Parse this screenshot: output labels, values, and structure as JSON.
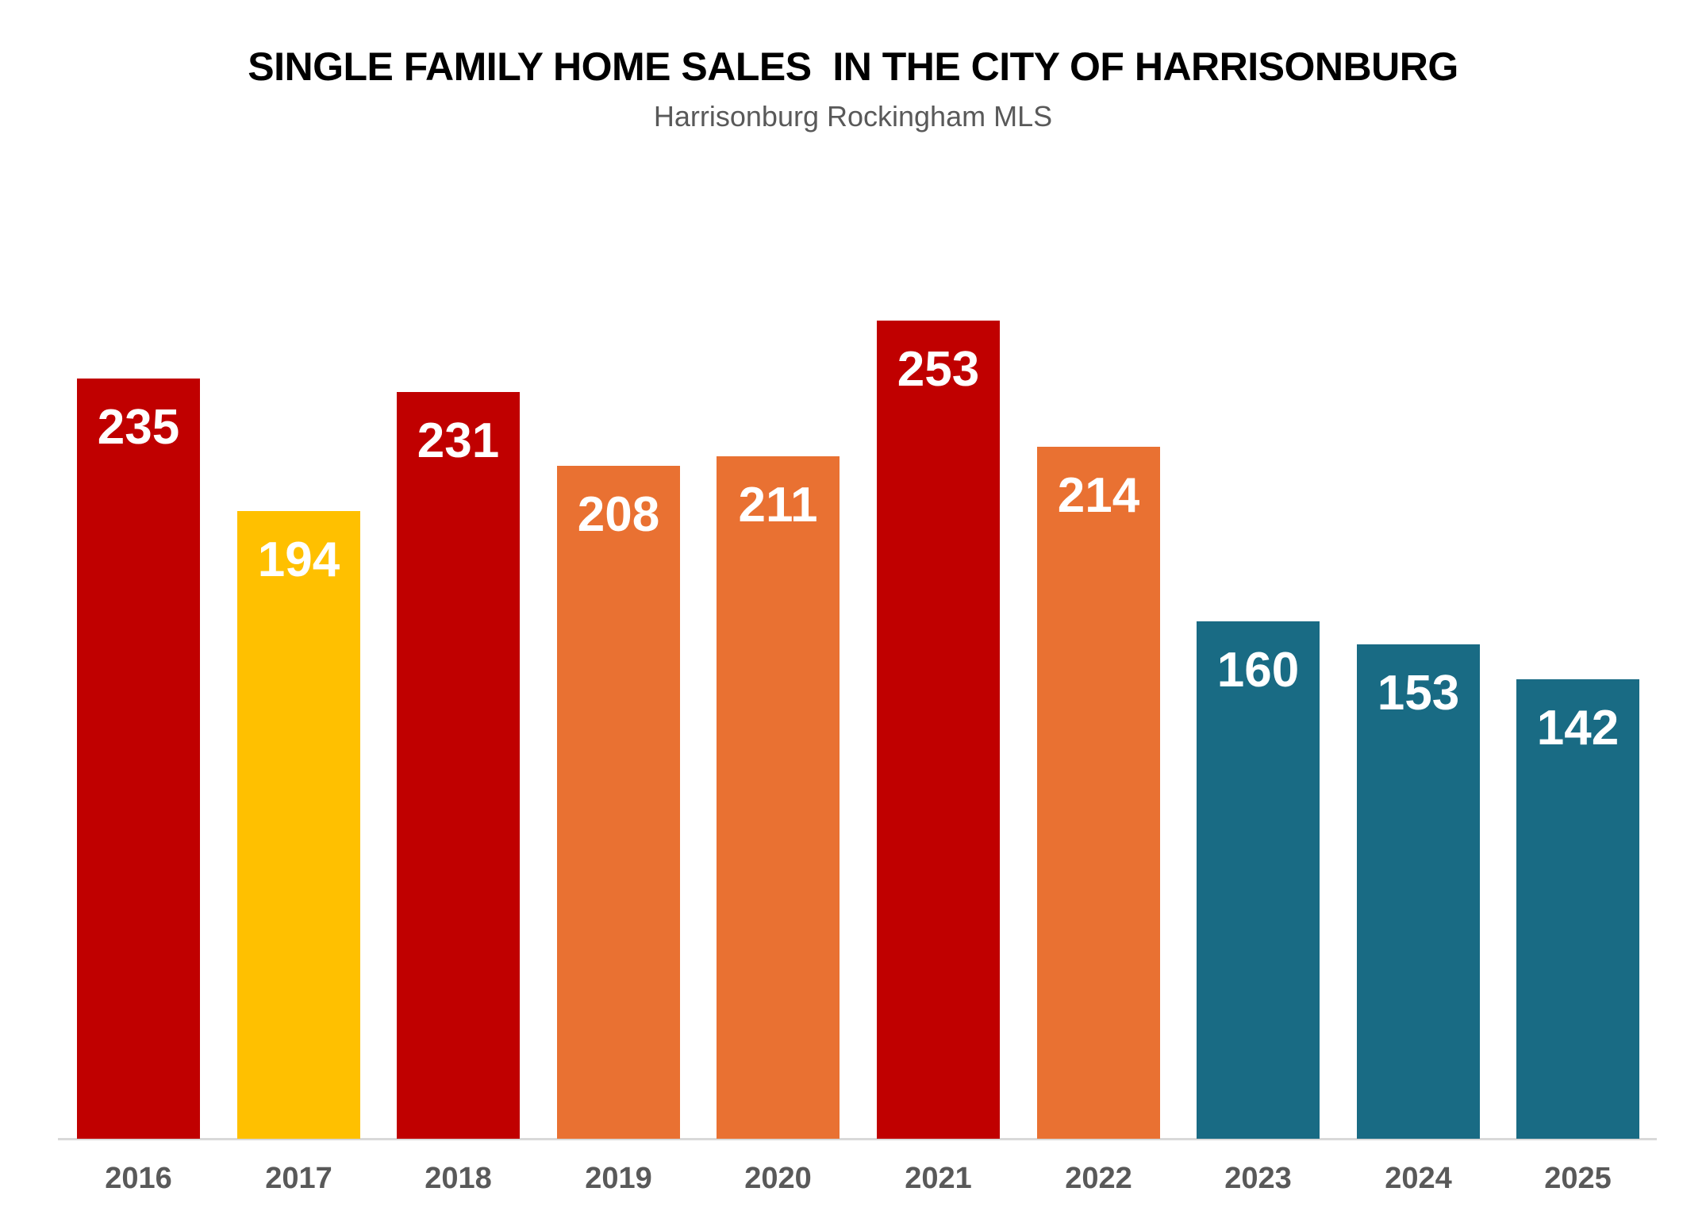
{
  "chart_data": {
    "type": "bar",
    "title": "SINGLE FAMILY HOME SALES  IN THE CITY OF HARRISONBURG",
    "subtitle": "Harrisonburg Rockingham MLS",
    "xlabel": "",
    "ylabel": "",
    "categories": [
      "2016",
      "2017",
      "2018",
      "2019",
      "2020",
      "2021",
      "2022",
      "2023",
      "2024",
      "2025"
    ],
    "values": [
      235,
      194,
      231,
      208,
      211,
      253,
      214,
      160,
      153,
      142
    ],
    "bar_colors": [
      "#C00000",
      "#FFC000",
      "#C00000",
      "#E97132",
      "#E97132",
      "#C00000",
      "#E97132",
      "#196B84",
      "#196B84",
      "#196B84"
    ],
    "data_labels": [
      "235",
      "194",
      "231",
      "208",
      "211",
      "253",
      "214",
      "160",
      "153",
      "142"
    ],
    "ylim": [
      0,
      253
    ],
    "grid": false,
    "legend": "none",
    "y_axis_visible": false
  }
}
